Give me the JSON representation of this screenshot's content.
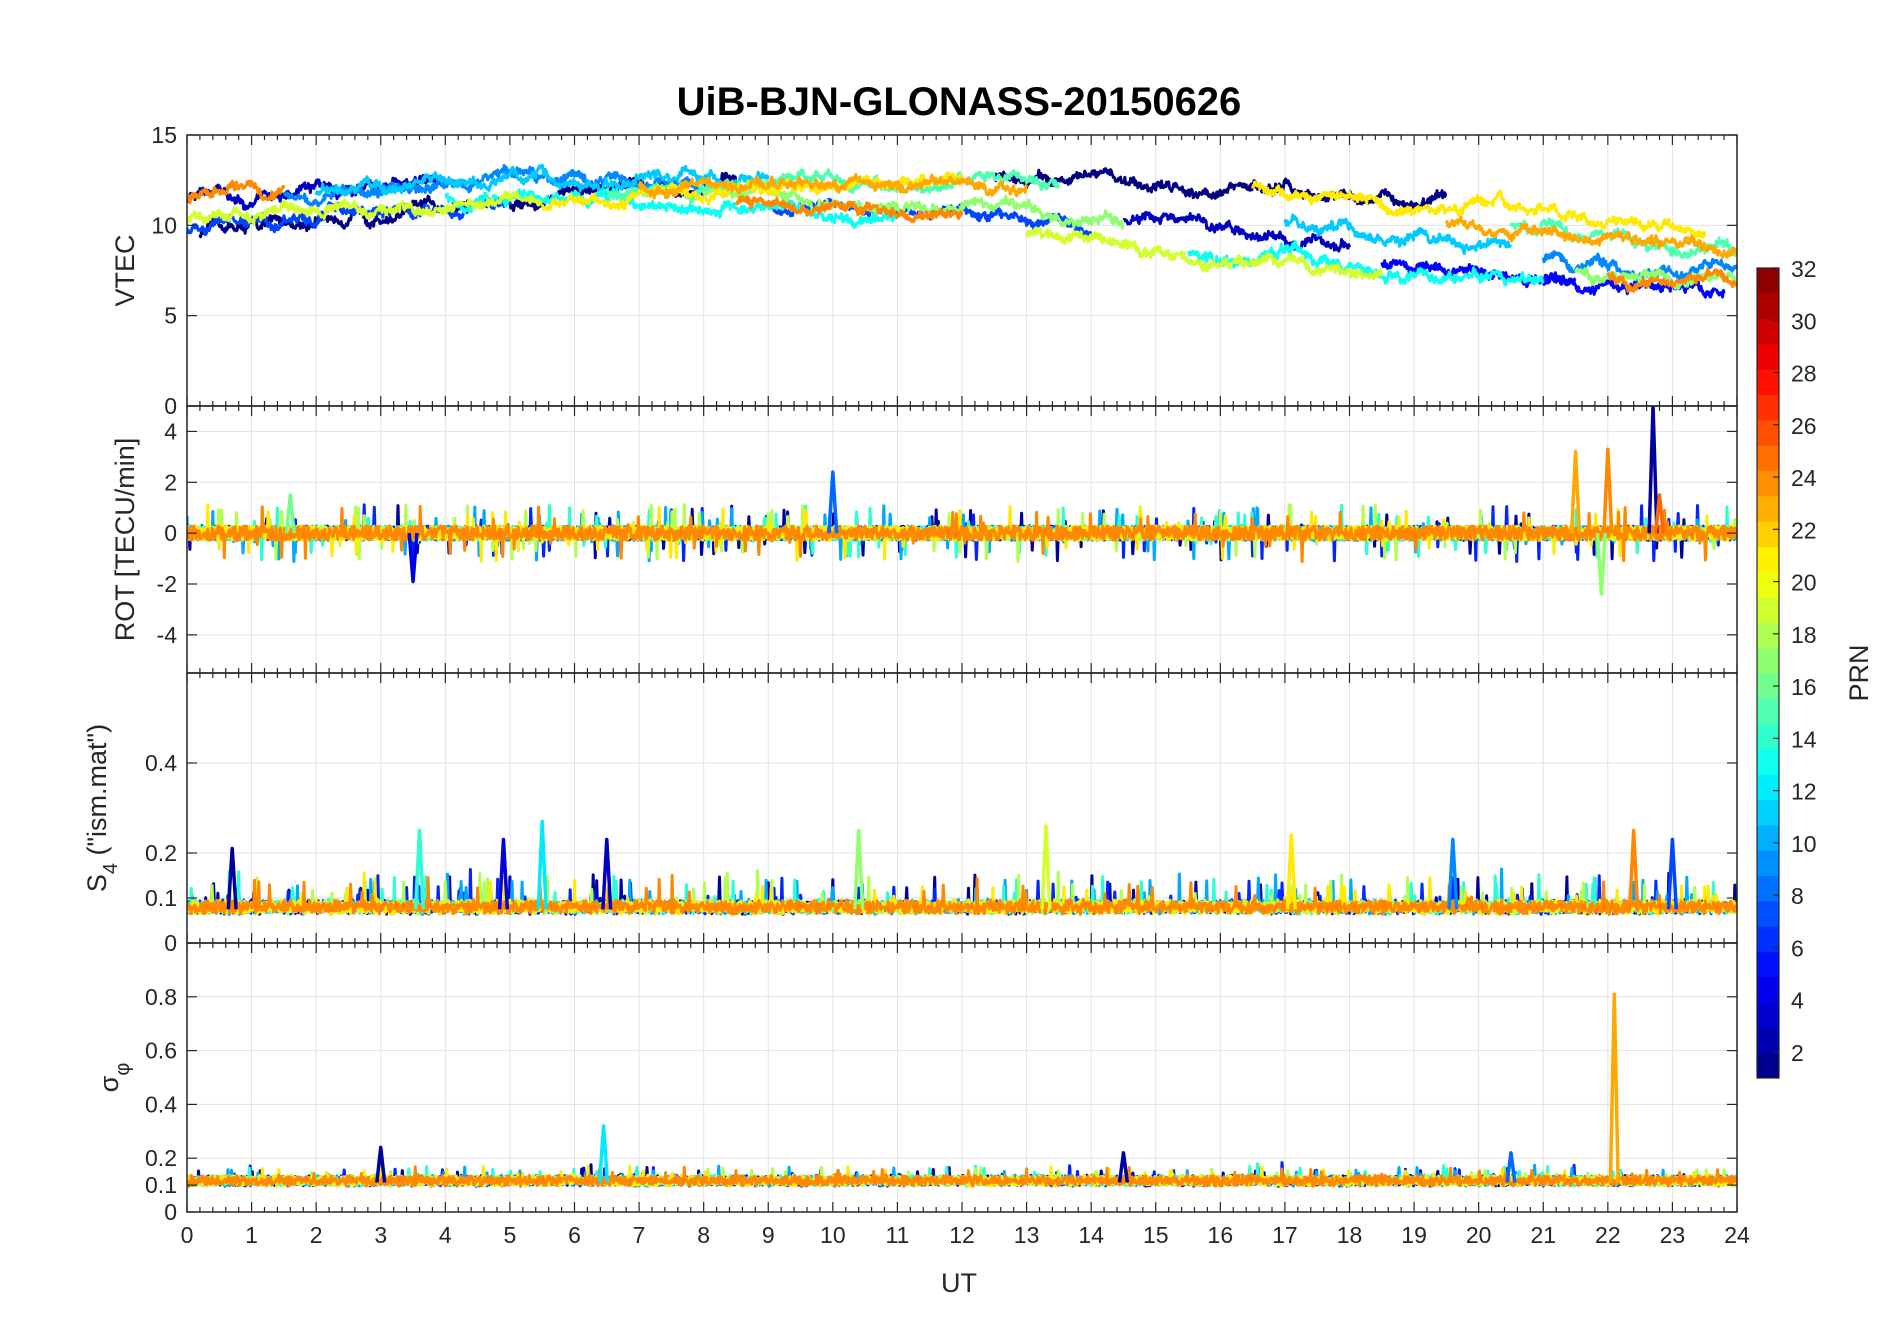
{
  "chart_data": {
    "type": "line",
    "title": "UiB-BJN-GLONASS-20150626",
    "xlabel": "UT",
    "xlim": [
      0,
      24
    ],
    "x_ticks": [
      "0",
      "1",
      "2",
      "3",
      "4",
      "5",
      "6",
      "7",
      "8",
      "9",
      "10",
      "11",
      "12",
      "13",
      "14",
      "15",
      "16",
      "17",
      "18",
      "19",
      "20",
      "21",
      "22",
      "23",
      "24"
    ],
    "grid": true,
    "panels": [
      {
        "id": "vtec",
        "ylabel": "VTEC",
        "ylim": [
          0,
          15
        ],
        "y_ticks": [
          0,
          5,
          10,
          15
        ],
        "y_tick_labels": [
          "0",
          "5",
          "10",
          "15"
        ],
        "base": 9.5,
        "amp": 2.5,
        "noise": 0.35,
        "spikes": [],
        "series": [
          {
            "prn": 1,
            "segments": [
              [
                0.2,
                8.5
              ],
              [
                12.5,
                19.5
              ]
            ]
          },
          {
            "prn": 3,
            "segments": [
              [
                0.0,
                4.0
              ],
              [
                14.5,
                18.0
              ]
            ]
          },
          {
            "prn": 5,
            "segments": [
              [
                18.5,
                21.5
              ],
              [
                21.0,
                23.8
              ]
            ]
          },
          {
            "prn": 7,
            "segments": [
              [
                0.0,
                5.0
              ],
              [
                9.0,
                14.0
              ]
            ]
          },
          {
            "prn": 9,
            "segments": [
              [
                1.5,
                8.0
              ],
              [
                21.0,
                24.0
              ]
            ]
          },
          {
            "prn": 11,
            "segments": [
              [
                2.0,
                9.0
              ],
              [
                17.0,
                20.5
              ]
            ]
          },
          {
            "prn": 13,
            "segments": [
              [
                4.0,
                11.0
              ],
              [
                15.5,
                21.0
              ]
            ]
          },
          {
            "prn": 15,
            "segments": [
              [
                6.5,
                13.5
              ],
              [
                20.5,
                24.0
              ]
            ]
          },
          {
            "prn": 17,
            "segments": [
              [
                8.0,
                14.5
              ],
              [
                21.5,
                24.0
              ]
            ]
          },
          {
            "prn": 19,
            "segments": [
              [
                0.0,
                5.5
              ],
              [
                13.0,
                18.5
              ]
            ]
          },
          {
            "prn": 21,
            "segments": [
              [
                5.5,
                12.0
              ],
              [
                16.5,
                23.5
              ]
            ]
          },
          {
            "prn": 23,
            "segments": [
              [
                7.0,
                13.0
              ],
              [
                19.5,
                24.0
              ]
            ]
          },
          {
            "prn": 24,
            "segments": [
              [
                0.0,
                1.5
              ],
              [
                8.5,
                12.0
              ],
              [
                22.0,
                24.0
              ]
            ]
          }
        ]
      },
      {
        "id": "rot",
        "ylabel": "ROT [TECU/min]",
        "ylim": [
          -5.5,
          5
        ],
        "y_ticks": [
          -4,
          -2,
          0,
          2,
          4
        ],
        "y_tick_labels": [
          "-4",
          "-2",
          "0",
          "2",
          "4"
        ],
        "base": 0,
        "amp": 0,
        "noise": 0.28,
        "spikes": [
          {
            "x": 10.0,
            "y": 2.4,
            "prn": 8
          },
          {
            "x": 22.7,
            "y": 5.0,
            "prn": 2
          },
          {
            "x": 21.5,
            "y": 3.2,
            "prn": 23
          },
          {
            "x": 22.0,
            "y": 3.3,
            "prn": 24
          },
          {
            "x": 21.9,
            "y": -2.4,
            "prn": 17
          },
          {
            "x": 3.5,
            "y": -1.9,
            "prn": 4
          },
          {
            "x": 1.6,
            "y": 1.5,
            "prn": 16
          },
          {
            "x": 22.8,
            "y": 1.5,
            "prn": 25
          }
        ],
        "series": [
          {
            "prn": 2,
            "segments": [
              [
                0.0,
                24.0
              ]
            ]
          },
          {
            "prn": 6,
            "segments": [
              [
                0.0,
                24.0
              ]
            ]
          },
          {
            "prn": 10,
            "segments": [
              [
                0.0,
                24.0
              ]
            ]
          },
          {
            "prn": 14,
            "segments": [
              [
                0.0,
                24.0
              ]
            ]
          },
          {
            "prn": 18,
            "segments": [
              [
                0.0,
                24.0
              ]
            ]
          },
          {
            "prn": 21,
            "segments": [
              [
                0.0,
                24.0
              ]
            ]
          },
          {
            "prn": 24,
            "segments": [
              [
                0.0,
                24.0
              ]
            ]
          }
        ]
      },
      {
        "id": "s4",
        "ylabel": "S4 (\"ism.mat\")",
        "ylabel_main": "S",
        "ylabel_sub": "4",
        "ylabel_rest": " (\"ism.mat\")",
        "ylim": [
          0,
          0.6
        ],
        "y_ticks": [
          0,
          0.1,
          0.2,
          0.4
        ],
        "y_tick_labels": [
          "0",
          "0.1",
          "0.2",
          "0.4"
        ],
        "base": 0.075,
        "amp": 0,
        "noise": 0.02,
        "spikes": [
          {
            "x": 3.6,
            "y": 0.25,
            "prn": 14
          },
          {
            "x": 5.5,
            "y": 0.27,
            "prn": 12
          },
          {
            "x": 6.5,
            "y": 0.23,
            "prn": 3
          },
          {
            "x": 10.4,
            "y": 0.25,
            "prn": 17
          },
          {
            "x": 13.3,
            "y": 0.26,
            "prn": 19
          },
          {
            "x": 17.1,
            "y": 0.24,
            "prn": 21
          },
          {
            "x": 19.6,
            "y": 0.23,
            "prn": 9
          },
          {
            "x": 22.4,
            "y": 0.25,
            "prn": 24
          },
          {
            "x": 23.0,
            "y": 0.23,
            "prn": 7
          },
          {
            "x": 0.7,
            "y": 0.21,
            "prn": 2
          },
          {
            "x": 4.9,
            "y": 0.23,
            "prn": 4
          }
        ],
        "series": [
          {
            "prn": 2,
            "segments": [
              [
                0.0,
                24.0
              ]
            ]
          },
          {
            "prn": 6,
            "segments": [
              [
                0.0,
                24.0
              ]
            ]
          },
          {
            "prn": 10,
            "segments": [
              [
                0.0,
                24.0
              ]
            ]
          },
          {
            "prn": 14,
            "segments": [
              [
                0.0,
                24.0
              ]
            ]
          },
          {
            "prn": 18,
            "segments": [
              [
                0.0,
                24.0
              ]
            ]
          },
          {
            "prn": 21,
            "segments": [
              [
                0.0,
                24.0
              ]
            ]
          },
          {
            "prn": 24,
            "segments": [
              [
                0.0,
                24.0
              ]
            ]
          }
        ]
      },
      {
        "id": "sigma",
        "ylabel": "σφ",
        "ylabel_main": "σ",
        "ylabel_sub": "φ",
        "ylim": [
          0,
          1.0
        ],
        "y_ticks": [
          0,
          0.1,
          0.2,
          0.4,
          0.6,
          0.8
        ],
        "y_tick_labels": [
          "0",
          "0.1",
          "0.2",
          "0.4",
          "0.6",
          "0.8"
        ],
        "base": 0.11,
        "amp": 0,
        "noise": 0.025,
        "spikes": [
          {
            "x": 22.1,
            "y": 0.81,
            "prn": 23
          },
          {
            "x": 6.45,
            "y": 0.32,
            "prn": 12
          },
          {
            "x": 3.0,
            "y": 0.24,
            "prn": 2
          },
          {
            "x": 14.5,
            "y": 0.22,
            "prn": 2
          },
          {
            "x": 20.5,
            "y": 0.22,
            "prn": 8
          }
        ],
        "series": [
          {
            "prn": 2,
            "segments": [
              [
                0.0,
                24.0
              ]
            ]
          },
          {
            "prn": 6,
            "segments": [
              [
                0.0,
                24.0
              ]
            ]
          },
          {
            "prn": 10,
            "segments": [
              [
                0.0,
                24.0
              ]
            ]
          },
          {
            "prn": 14,
            "segments": [
              [
                0.0,
                24.0
              ]
            ]
          },
          {
            "prn": 18,
            "segments": [
              [
                0.0,
                24.0
              ]
            ]
          },
          {
            "prn": 21,
            "segments": [
              [
                0.0,
                24.0
              ]
            ]
          },
          {
            "prn": 24,
            "segments": [
              [
                0.0,
                24.0
              ]
            ]
          }
        ]
      }
    ],
    "colorbar": {
      "label": "PRN",
      "range": [
        1,
        32
      ],
      "ticks": [
        2,
        4,
        6,
        8,
        10,
        12,
        14,
        16,
        18,
        20,
        22,
        24,
        26,
        28,
        30,
        32
      ],
      "colormap": "jet",
      "levels": 32
    }
  }
}
